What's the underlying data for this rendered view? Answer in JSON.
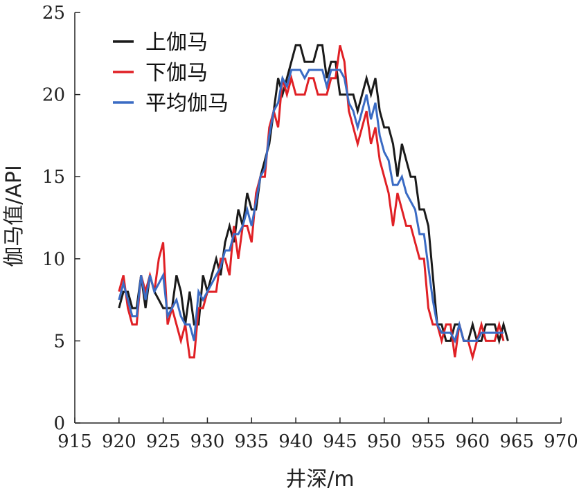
{
  "chart_data": {
    "type": "line",
    "title": "",
    "xlabel": "井深/m",
    "ylabel": "伽马值/API",
    "xlim": [
      915,
      970
    ],
    "ylim": [
      0,
      25
    ],
    "xticks": [
      915,
      920,
      925,
      930,
      935,
      940,
      945,
      950,
      955,
      960,
      965,
      970
    ],
    "yticks": [
      0,
      5,
      10,
      15,
      20,
      25
    ],
    "legend_position": "top-left",
    "grid": false,
    "series": [
      {
        "name": "上伽马",
        "color": "#1a1a1a",
        "points": [
          [
            920,
            7
          ],
          [
            920.5,
            8
          ],
          [
            921,
            8
          ],
          [
            921.5,
            7
          ],
          [
            922,
            7
          ],
          [
            922.5,
            9
          ],
          [
            923,
            7
          ],
          [
            923.5,
            9
          ],
          [
            924,
            8
          ],
          [
            924.5,
            7.5
          ],
          [
            925,
            7
          ],
          [
            925.5,
            7
          ],
          [
            926,
            7
          ],
          [
            926.5,
            9
          ],
          [
            927,
            8
          ],
          [
            927.5,
            6
          ],
          [
            928,
            8
          ],
          [
            928.5,
            6
          ],
          [
            929,
            6
          ],
          [
            929.5,
            9
          ],
          [
            930,
            8
          ],
          [
            930.5,
            9
          ],
          [
            931,
            10
          ],
          [
            931.5,
            9
          ],
          [
            932,
            11
          ],
          [
            932.5,
            12
          ],
          [
            933,
            11
          ],
          [
            933.5,
            13
          ],
          [
            934,
            12
          ],
          [
            934.5,
            14
          ],
          [
            935,
            13
          ],
          [
            935.5,
            13
          ],
          [
            936,
            15
          ],
          [
            936.5,
            16
          ],
          [
            937,
            17
          ],
          [
            937.5,
            19
          ],
          [
            938,
            21
          ],
          [
            938.5,
            20
          ],
          [
            939,
            21
          ],
          [
            939.5,
            22
          ],
          [
            940,
            23
          ],
          [
            940.5,
            23
          ],
          [
            941,
            22
          ],
          [
            941.5,
            22
          ],
          [
            942,
            22
          ],
          [
            942.5,
            23
          ],
          [
            943,
            23
          ],
          [
            943.5,
            21
          ],
          [
            944,
            22
          ],
          [
            944.5,
            22
          ],
          [
            945,
            20
          ],
          [
            945.5,
            20
          ],
          [
            946,
            20
          ],
          [
            946.5,
            20
          ],
          [
            947,
            19
          ],
          [
            947.5,
            20
          ],
          [
            948,
            21
          ],
          [
            948.5,
            20
          ],
          [
            949,
            21
          ],
          [
            949.5,
            19
          ],
          [
            950,
            18
          ],
          [
            950.5,
            18
          ],
          [
            951,
            17
          ],
          [
            951.5,
            15
          ],
          [
            952,
            17
          ],
          [
            952.5,
            16
          ],
          [
            953,
            15
          ],
          [
            953.5,
            15
          ],
          [
            954,
            13
          ],
          [
            954.5,
            13
          ],
          [
            955,
            12
          ],
          [
            955.5,
            9
          ],
          [
            956,
            6
          ],
          [
            956.5,
            6
          ],
          [
            957,
            5
          ],
          [
            957.5,
            5
          ],
          [
            958,
            6
          ],
          [
            958.5,
            6
          ],
          [
            959,
            5
          ],
          [
            959.5,
            5
          ],
          [
            960,
            6
          ],
          [
            960.5,
            5
          ],
          [
            961,
            5
          ],
          [
            961.5,
            6
          ],
          [
            962,
            6
          ],
          [
            962.5,
            6
          ],
          [
            963,
            5
          ],
          [
            963.5,
            6
          ],
          [
            964,
            5
          ]
        ]
      },
      {
        "name": "下伽马",
        "color": "#e02025",
        "points": [
          [
            920,
            8
          ],
          [
            920.5,
            9
          ],
          [
            921,
            7
          ],
          [
            921.5,
            6
          ],
          [
            922,
            6
          ],
          [
            922.5,
            9
          ],
          [
            923,
            8
          ],
          [
            923.5,
            9
          ],
          [
            924,
            8
          ],
          [
            924.5,
            10
          ],
          [
            925,
            11
          ],
          [
            925.5,
            6
          ],
          [
            926,
            7
          ],
          [
            926.5,
            6
          ],
          [
            927,
            5
          ],
          [
            927.5,
            6
          ],
          [
            928,
            4
          ],
          [
            928.5,
            4
          ],
          [
            929,
            7
          ],
          [
            929.5,
            7
          ],
          [
            930,
            8
          ],
          [
            930.5,
            8
          ],
          [
            931,
            8
          ],
          [
            931.5,
            10
          ],
          [
            932,
            10
          ],
          [
            932.5,
            9
          ],
          [
            933,
            12
          ],
          [
            933.5,
            10
          ],
          [
            934,
            12
          ],
          [
            934.5,
            12
          ],
          [
            935,
            11
          ],
          [
            935.5,
            14
          ],
          [
            936,
            15
          ],
          [
            936.5,
            15
          ],
          [
            937,
            18
          ],
          [
            937.5,
            19
          ],
          [
            938,
            18
          ],
          [
            938.5,
            21
          ],
          [
            939,
            20
          ],
          [
            939.5,
            21
          ],
          [
            940,
            20
          ],
          [
            940.5,
            20
          ],
          [
            941,
            20
          ],
          [
            941.5,
            21
          ],
          [
            942,
            21
          ],
          [
            942.5,
            20
          ],
          [
            943,
            20
          ],
          [
            943.5,
            20
          ],
          [
            944,
            21
          ],
          [
            944.5,
            21
          ],
          [
            945,
            23
          ],
          [
            945.5,
            22
          ],
          [
            946,
            19
          ],
          [
            946.5,
            18
          ],
          [
            947,
            17
          ],
          [
            947.5,
            18
          ],
          [
            948,
            19
          ],
          [
            948.5,
            17
          ],
          [
            949,
            18
          ],
          [
            949.5,
            16
          ],
          [
            950,
            15
          ],
          [
            950.5,
            14
          ],
          [
            951,
            12
          ],
          [
            951.5,
            14
          ],
          [
            952,
            13
          ],
          [
            952.5,
            12
          ],
          [
            953,
            12
          ],
          [
            953.5,
            11
          ],
          [
            954,
            10
          ],
          [
            954.5,
            10
          ],
          [
            955,
            7
          ],
          [
            955.5,
            6
          ],
          [
            956,
            6
          ],
          [
            956.5,
            5
          ],
          [
            957,
            6
          ],
          [
            957.5,
            6
          ],
          [
            958,
            4
          ],
          [
            958.5,
            6
          ],
          [
            959,
            5
          ],
          [
            959.5,
            5
          ],
          [
            960,
            4
          ],
          [
            960.5,
            5
          ],
          [
            961,
            6
          ],
          [
            961.5,
            5
          ],
          [
            962,
            5
          ],
          [
            962.5,
            5
          ],
          [
            963,
            6
          ],
          [
            963.5,
            5
          ]
        ]
      },
      {
        "name": "平均伽马",
        "color": "#3a6bc4",
        "points": [
          [
            920,
            7.5
          ],
          [
            920.5,
            8.5
          ],
          [
            921,
            7.5
          ],
          [
            921.5,
            6.5
          ],
          [
            922,
            6.5
          ],
          [
            922.5,
            9
          ],
          [
            923,
            7.5
          ],
          [
            923.5,
            9
          ],
          [
            924,
            8
          ],
          [
            924.5,
            8.5
          ],
          [
            925,
            9
          ],
          [
            925.5,
            6.5
          ],
          [
            926,
            7
          ],
          [
            926.5,
            7.5
          ],
          [
            927,
            6.5
          ],
          [
            927.5,
            6
          ],
          [
            928,
            6
          ],
          [
            928.5,
            5
          ],
          [
            929,
            8
          ],
          [
            929.5,
            7.5
          ],
          [
            930,
            8
          ],
          [
            930.5,
            8.5
          ],
          [
            931,
            9
          ],
          [
            931.5,
            9.5
          ],
          [
            932,
            10.5
          ],
          [
            932.5,
            10.5
          ],
          [
            933,
            11.5
          ],
          [
            933.5,
            11.5
          ],
          [
            934,
            12
          ],
          [
            934.5,
            13
          ],
          [
            935,
            12
          ],
          [
            935.5,
            13.5
          ],
          [
            936,
            15
          ],
          [
            936.5,
            15.5
          ],
          [
            937,
            17.5
          ],
          [
            937.5,
            19
          ],
          [
            938,
            19.5
          ],
          [
            938.5,
            21
          ],
          [
            939,
            20.5
          ],
          [
            939.5,
            21.5
          ],
          [
            940,
            21.5
          ],
          [
            940.5,
            21.5
          ],
          [
            941,
            21
          ],
          [
            941.5,
            21.5
          ],
          [
            942,
            21.5
          ],
          [
            942.5,
            21.5
          ],
          [
            943,
            21.5
          ],
          [
            943.5,
            20.5
          ],
          [
            944,
            21.5
          ],
          [
            944.5,
            21.5
          ],
          [
            945,
            21.5
          ],
          [
            945.5,
            21
          ],
          [
            946,
            19.5
          ],
          [
            946.5,
            19
          ],
          [
            947,
            18
          ],
          [
            947.5,
            19
          ],
          [
            948,
            20
          ],
          [
            948.5,
            18.5
          ],
          [
            949,
            19.5
          ],
          [
            949.5,
            17.5
          ],
          [
            950,
            16.5
          ],
          [
            950.5,
            16
          ],
          [
            951,
            14.5
          ],
          [
            951.5,
            14.5
          ],
          [
            952,
            15
          ],
          [
            952.5,
            14
          ],
          [
            953,
            13.5
          ],
          [
            953.5,
            13
          ],
          [
            954,
            11.5
          ],
          [
            954.5,
            11.5
          ],
          [
            955,
            9.5
          ],
          [
            955.5,
            7.5
          ],
          [
            956,
            6
          ],
          [
            956.5,
            5.5
          ],
          [
            957,
            5.5
          ],
          [
            957.5,
            5.5
          ],
          [
            958,
            5
          ],
          [
            958.5,
            6
          ],
          [
            959,
            5
          ],
          [
            959.5,
            5
          ],
          [
            960,
            5
          ],
          [
            960.5,
            5
          ],
          [
            961,
            5.5
          ],
          [
            961.5,
            5.5
          ],
          [
            962,
            5.5
          ],
          [
            962.5,
            5.5
          ],
          [
            963,
            5.5
          ],
          [
            963.5,
            5.5
          ]
        ]
      }
    ]
  }
}
